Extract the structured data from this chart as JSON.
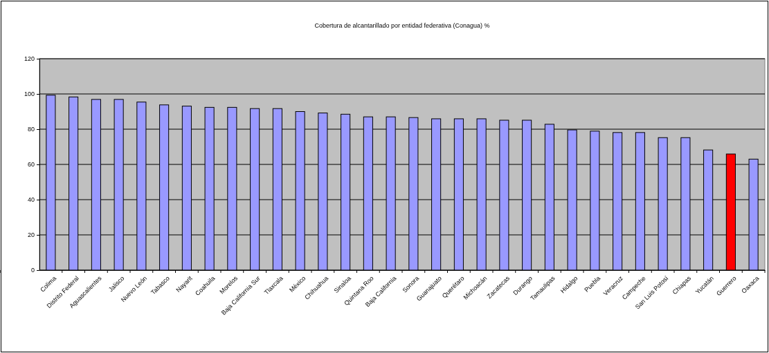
{
  "chart_data": {
    "type": "bar",
    "title": "Cobertura de alcantarillado por entidad federativa (Conagua) %",
    "categories": [
      "Colima",
      "Distrito Federal",
      "Aguascalientes",
      "Jalisco",
      "Nuevo León",
      "Tabasco",
      "Nayarit",
      "Coahuila",
      "Morelos",
      "Baja California Sur",
      "Tlaxcala",
      "México",
      "Chihuahua",
      "Sinaloa",
      "Quintana Roo",
      "Baja California",
      "Sonora",
      "Guanajuato",
      "Querétaro",
      "Michoacán",
      "Zacatecas",
      "Durango",
      "Tamaulipas",
      "Hidalgo",
      "Puebla",
      "Veracruz",
      "Campeche",
      "San Luis Potosí",
      "Chiapas",
      "Yucatán",
      "Guerrero",
      "Oaxaca"
    ],
    "values": [
      99.3,
      98.3,
      96.9,
      96.9,
      95.4,
      93.8,
      93.1,
      92.4,
      92.4,
      91.7,
      91.7,
      90.0,
      89.2,
      88.5,
      87.0,
      87.0,
      86.6,
      85.9,
      85.9,
      85.9,
      85.1,
      85.1,
      82.8,
      79.6,
      78.9,
      78.1,
      78.1,
      75.2,
      75.2,
      68.2,
      65.9,
      63.0
    ],
    "colors": [
      "#9999ff",
      "#9999ff",
      "#9999ff",
      "#9999ff",
      "#9999ff",
      "#9999ff",
      "#9999ff",
      "#9999ff",
      "#9999ff",
      "#9999ff",
      "#9999ff",
      "#9999ff",
      "#9999ff",
      "#9999ff",
      "#9999ff",
      "#9999ff",
      "#9999ff",
      "#9999ff",
      "#9999ff",
      "#9999ff",
      "#9999ff",
      "#9999ff",
      "#9999ff",
      "#9999ff",
      "#9999ff",
      "#9999ff",
      "#9999ff",
      "#9999ff",
      "#9999ff",
      "#9999ff",
      "#ff0000",
      "#9999ff"
    ],
    "ylim": [
      0,
      120
    ],
    "yticks": [
      0,
      20,
      40,
      60,
      80,
      100,
      120
    ],
    "grid": "y"
  }
}
